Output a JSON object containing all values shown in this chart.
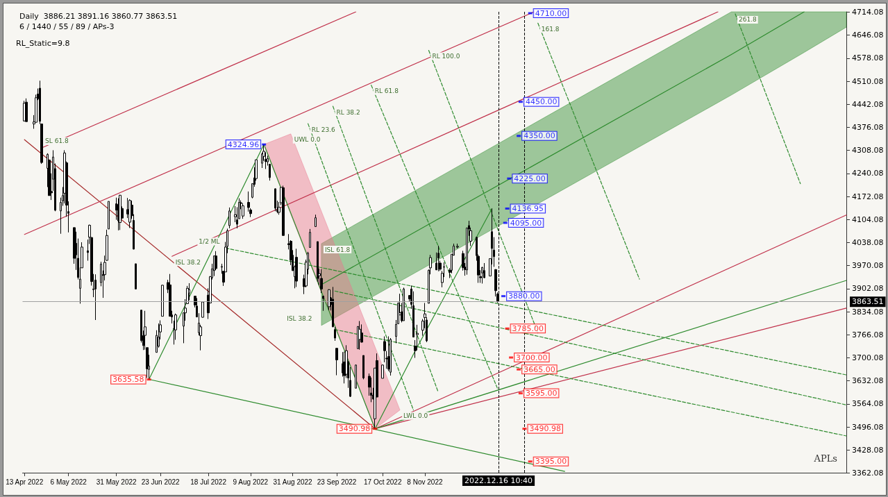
{
  "chart_data": {
    "type": "candlestick",
    "title": "Daily  3886.21 3891.16 3860.77 3863.51",
    "subtitle": "6 / 1440 / 55 / 89 / APs-3",
    "xlim": [
      "2022-04-12",
      "2023-06-16"
    ],
    "xticks": [
      {
        "value": "2022-04-13",
        "label": "13 Apr 2022"
      },
      {
        "value": "2022-05-06",
        "label": "6 May 2022"
      },
      {
        "value": "2022-05-31",
        "label": "31 May 2022"
      },
      {
        "value": "2022-06-23",
        "label": "23 Jun 2022"
      },
      {
        "value": "2022-07-18",
        "label": "18 Jul 2022"
      },
      {
        "value": "2022-08-09",
        "label": "9 Aug 2022"
      },
      {
        "value": "2022-08-31",
        "label": "31 Aug 2022"
      },
      {
        "value": "2022-09-23",
        "label": "23 Sep 2022"
      },
      {
        "value": "2022-10-17",
        "label": "17 Oct 2022"
      },
      {
        "value": "2022-11-08",
        "label": "8 Nov 2022"
      }
    ],
    "ylim": [
      3362.08,
      4714.08
    ],
    "yticks": [
      3362.08,
      3428.08,
      3496.08,
      3564.08,
      3632.08,
      3700.08,
      3766.08,
      3834.08,
      3902.08,
      3970.08,
      4038.08,
      4104.08,
      4172.08,
      4240.08,
      4308.08,
      4376.08,
      4442.08,
      4510.08,
      4578.08,
      4646.08,
      4714.08
    ],
    "series": [
      {
        "color": "#000000",
        "x": [
          "2022-04-13",
          "2022-04-14",
          "2022-04-18",
          "2022-04-19",
          "2022-04-20",
          "2022-04-21",
          "2022-04-22",
          "2022-04-25",
          "2022-04-26",
          "2022-04-27",
          "2022-04-28",
          "2022-04-29",
          "2022-05-02",
          "2022-05-03",
          "2022-05-04",
          "2022-05-05",
          "2022-05-06",
          "2022-05-09",
          "2022-05-10",
          "2022-05-11",
          "2022-05-12",
          "2022-05-13",
          "2022-05-16",
          "2022-05-17",
          "2022-05-18",
          "2022-05-19",
          "2022-05-20",
          "2022-05-23",
          "2022-05-24",
          "2022-05-25",
          "2022-05-26",
          "2022-05-27",
          "2022-05-31",
          "2022-06-01",
          "2022-06-02",
          "2022-06-03",
          "2022-06-06",
          "2022-06-07",
          "2022-06-08",
          "2022-06-09",
          "2022-06-10",
          "2022-06-13",
          "2022-06-14",
          "2022-06-15",
          "2022-06-16",
          "2022-06-17",
          "2022-06-21",
          "2022-06-22",
          "2022-06-23",
          "2022-06-24",
          "2022-06-27",
          "2022-06-28",
          "2022-06-29",
          "2022-06-30",
          "2022-07-01",
          "2022-07-05",
          "2022-07-06",
          "2022-07-07",
          "2022-07-08",
          "2022-07-11",
          "2022-07-12",
          "2022-07-13",
          "2022-07-14",
          "2022-07-15",
          "2022-07-18",
          "2022-07-19",
          "2022-07-20",
          "2022-07-21",
          "2022-07-22",
          "2022-07-25",
          "2022-07-26",
          "2022-07-27",
          "2022-07-28",
          "2022-07-29",
          "2022-08-01",
          "2022-08-02",
          "2022-08-03",
          "2022-08-04",
          "2022-08-05",
          "2022-08-08",
          "2022-08-09",
          "2022-08-10",
          "2022-08-11",
          "2022-08-12",
          "2022-08-15",
          "2022-08-16",
          "2022-08-17",
          "2022-08-18",
          "2022-08-19",
          "2022-08-22",
          "2022-08-23",
          "2022-08-24",
          "2022-08-25",
          "2022-08-26",
          "2022-08-29",
          "2022-08-30",
          "2022-08-31",
          "2022-09-01",
          "2022-09-02",
          "2022-09-06",
          "2022-09-07",
          "2022-09-08",
          "2022-09-09",
          "2022-09-12",
          "2022-09-13",
          "2022-09-14",
          "2022-09-15",
          "2022-09-16",
          "2022-09-19",
          "2022-09-20",
          "2022-09-21",
          "2022-09-22",
          "2022-09-23",
          "2022-09-26",
          "2022-09-27",
          "2022-09-28",
          "2022-09-29",
          "2022-09-30",
          "2022-10-03",
          "2022-10-04",
          "2022-10-05",
          "2022-10-06",
          "2022-10-07",
          "2022-10-10",
          "2022-10-11",
          "2022-10-12",
          "2022-10-13",
          "2022-10-14",
          "2022-10-17",
          "2022-10-18",
          "2022-10-19",
          "2022-10-20",
          "2022-10-21",
          "2022-10-24",
          "2022-10-25",
          "2022-10-26",
          "2022-10-27",
          "2022-10-28",
          "2022-10-31",
          "2022-11-01",
          "2022-11-02",
          "2022-11-03",
          "2022-11-04",
          "2022-11-07",
          "2022-11-08",
          "2022-11-09",
          "2022-11-10",
          "2022-11-11",
          "2022-11-14",
          "2022-11-15",
          "2022-11-16",
          "2022-11-17",
          "2022-11-18",
          "2022-11-21",
          "2022-11-22",
          "2022-11-23",
          "2022-11-25",
          "2022-11-28",
          "2022-11-29",
          "2022-11-30",
          "2022-12-01",
          "2022-12-02",
          "2022-12-05",
          "2022-12-06",
          "2022-12-07",
          "2022-12-08",
          "2022-12-09",
          "2022-12-12",
          "2022-12-13",
          "2022-12-14",
          "2022-12-15",
          "2022-12-16"
        ],
        "ohlc": [
          [
            4394,
            4453,
            4392,
            4446
          ],
          [
            4449,
            4460,
            4392,
            4392
          ],
          [
            4385,
            4411,
            4371,
            4391
          ],
          [
            4390,
            4471,
            4390,
            4462
          ],
          [
            4473,
            4489,
            4455,
            4459
          ],
          [
            4490,
            4512,
            4385,
            4393
          ],
          [
            4385,
            4385,
            4268,
            4272
          ],
          [
            4255,
            4299,
            4200,
            4296
          ],
          [
            4279,
            4279,
            4175,
            4175
          ],
          [
            4187,
            4240,
            4162,
            4183
          ],
          [
            4223,
            4308,
            4189,
            4288
          ],
          [
            4254,
            4269,
            4129,
            4132
          ],
          [
            4130,
            4169,
            4063,
            4155
          ],
          [
            4160,
            4200,
            4145,
            4175
          ],
          [
            4182,
            4308,
            4152,
            4300
          ],
          [
            4271,
            4275,
            4113,
            4147
          ],
          [
            4128,
            4158,
            4067,
            4123
          ],
          [
            4081,
            4082,
            3975,
            3991
          ],
          [
            4035,
            4069,
            3957,
            4001
          ],
          [
            3991,
            4049,
            3929,
            3935
          ],
          [
            3903,
            3964,
            3858,
            3930
          ],
          [
            3963,
            4038,
            3963,
            4024
          ],
          [
            4013,
            4046,
            3984,
            4008
          ],
          [
            4053,
            4090,
            4033,
            4088
          ],
          [
            4052,
            4053,
            3911,
            3923
          ],
          [
            3899,
            3945,
            3877,
            3901
          ],
          [
            3927,
            3944,
            3810,
            3901
          ],
          [
            3920,
            3981,
            3909,
            3974
          ],
          [
            3943,
            3955,
            3875,
            3941
          ],
          [
            3943,
            3999,
            3926,
            3979
          ],
          [
            3985,
            4075,
            3984,
            4058
          ],
          [
            4077,
            4158,
            4077,
            4158
          ],
          [
            4151,
            4169,
            4104,
            4132
          ],
          [
            4149,
            4167,
            4073,
            4101
          ],
          [
            4096,
            4177,
            4074,
            4176
          ],
          [
            4137,
            4143,
            4107,
            4109
          ],
          [
            4134,
            4168,
            4109,
            4121
          ],
          [
            4097,
            4164,
            4080,
            4161
          ],
          [
            4147,
            4160,
            4107,
            4116
          ],
          [
            4102,
            4120,
            4017,
            4018
          ],
          [
            3975,
            3975,
            3900,
            3901
          ],
          [
            3839,
            3839,
            3744,
            3750
          ],
          [
            3764,
            3779,
            3722,
            3735
          ],
          [
            3765,
            3837,
            3723,
            3790
          ],
          [
            3729,
            3729,
            3640,
            3667
          ],
          [
            3665,
            3708,
            3635.58,
            3675
          ],
          [
            3715,
            3780,
            3715,
            3765
          ],
          [
            3733,
            3800,
            3729,
            3760
          ],
          [
            3775,
            3809,
            3753,
            3796
          ],
          [
            3821,
            3913,
            3821,
            3912
          ],
          [
            3920,
            3928,
            3889,
            3900
          ],
          [
            3913,
            3945,
            3820,
            3821
          ],
          [
            3825,
            3837,
            3800,
            3819
          ],
          [
            3785,
            3808,
            3738,
            3785
          ],
          [
            3781,
            3829,
            3752,
            3825
          ],
          [
            3792,
            3832,
            3742,
            3831
          ],
          [
            3831,
            3871,
            3808,
            3845
          ],
          [
            3858,
            3910,
            3858,
            3903
          ],
          [
            3889,
            3918,
            3868,
            3899
          ],
          [
            3880,
            3880,
            3847,
            3854
          ],
          [
            3851,
            3874,
            3818,
            3819
          ],
          [
            3773,
            3830,
            3765,
            3801
          ],
          [
            3764,
            3796,
            3721,
            3790
          ],
          [
            3818,
            3863,
            3817,
            3863
          ],
          [
            3883,
            3903,
            3813,
            3831
          ],
          [
            3860,
            3939,
            3860,
            3937
          ],
          [
            3935,
            3975,
            3929,
            3960
          ],
          [
            3955,
            3999,
            3939,
            3998
          ],
          [
            3998,
            4012,
            3956,
            3961
          ],
          [
            3965,
            3975,
            3946,
            3967
          ],
          [
            3953,
            3953,
            3910,
            3921
          ],
          [
            3951,
            4039,
            3951,
            4024
          ],
          [
            4026,
            4078,
            4006,
            4072
          ],
          [
            4087,
            4140,
            4079,
            4130
          ],
          [
            4113,
            4144,
            4097,
            4119
          ],
          [
            4104,
            4141,
            4079,
            4091
          ],
          [
            4107,
            4167,
            4107,
            4155
          ],
          [
            4154,
            4161,
            4135,
            4152
          ],
          [
            4115,
            4152,
            4107,
            4145
          ],
          [
            4155,
            4187,
            4128,
            4140
          ],
          [
            4133,
            4138,
            4112,
            4122
          ],
          [
            4170,
            4211,
            4167,
            4210
          ],
          [
            4227,
            4258,
            4201,
            4208
          ],
          [
            4225,
            4280,
            4219,
            4280
          ],
          [
            4270,
            4301,
            4256,
            4297
          ],
          [
            4290,
            4324.96,
            4277,
            4305
          ],
          [
            4281,
            4302,
            4253,
            4275
          ],
          [
            4274,
            4292,
            4263,
            4284
          ],
          [
            4267,
            4267,
            4219,
            4228
          ],
          [
            4195,
            4196,
            4129,
            4138
          ],
          [
            4134,
            4160,
            4123,
            4128
          ],
          [
            4126,
            4156,
            4119,
            4141
          ],
          [
            4154,
            4200,
            4147,
            4199
          ],
          [
            4198,
            4204,
            4057,
            4058
          ],
          [
            4034,
            4062,
            4017,
            4031
          ],
          [
            4041,
            4044,
            3971,
            3986
          ],
          [
            4000,
            4015,
            3954,
            3955
          ],
          [
            3937,
            3970,
            3903,
            3966
          ],
          [
            3994,
            4019,
            3907,
            3924
          ],
          [
            3931,
            3943,
            3886,
            3908
          ],
          [
            3910,
            3987,
            3906,
            3980
          ],
          [
            3959,
            4010,
            3944,
            4006
          ],
          [
            4023,
            4077,
            4022,
            4067
          ],
          [
            4084,
            4119,
            4083,
            4110
          ],
          [
            4040,
            4040,
            3922,
            3932
          ],
          [
            3940,
            3961,
            3912,
            3946
          ],
          [
            3932,
            3959,
            3889,
            3901
          ],
          [
            3880,
            3880,
            3837,
            3873
          ],
          [
            3849,
            3900,
            3839,
            3899
          ],
          [
            3875,
            3877,
            3838,
            3855
          ],
          [
            3871,
            3907,
            3789,
            3790
          ],
          [
            3782,
            3790,
            3749,
            3757
          ],
          [
            3727,
            3727,
            3648,
            3693
          ],
          [
            3682,
            3716,
            3644,
            3655
          ],
          [
            3687,
            3717,
            3624,
            3647
          ],
          [
            3651,
            3736,
            3640,
            3720
          ],
          [
            3688,
            3688,
            3611,
            3640
          ],
          [
            3633,
            3672,
            3584,
            3586
          ],
          [
            3610,
            3679,
            3610,
            3678
          ],
          [
            3726,
            3791,
            3726,
            3791
          ],
          [
            3753,
            3807,
            3723,
            3783
          ],
          [
            3772,
            3797,
            3744,
            3745
          ],
          [
            3706,
            3706,
            3636,
            3640
          ],
          [
            3645,
            3653,
            3588,
            3613
          ],
          [
            3596,
            3641,
            3569,
            3589
          ],
          [
            3590,
            3611,
            3578,
            3578
          ],
          [
            3520,
            3669,
            3490.98,
            3669
          ],
          [
            3691,
            3712,
            3584,
            3584
          ],
          [
            3639,
            3679,
            3639,
            3678
          ],
          [
            3747,
            3762,
            3686,
            3720
          ],
          [
            3698,
            3719,
            3667,
            3696
          ],
          [
            3703,
            3762,
            3660,
            3666
          ],
          [
            3657,
            3757,
            3647,
            3753
          ],
          [
            3762,
            3810,
            3742,
            3797
          ],
          [
            3799,
            3862,
            3799,
            3859
          ],
          [
            3825,
            3887,
            3825,
            3831
          ],
          [
            3834,
            3860,
            3803,
            3808
          ],
          [
            3808,
            3905,
            3808,
            3901
          ],
          [
            3882,
            3882,
            3863,
            3872
          ],
          [
            3901,
            3911,
            3843,
            3856
          ],
          [
            3852,
            3894,
            3759,
            3760
          ],
          [
            3733,
            3751,
            3699,
            3720
          ],
          [
            3767,
            3796,
            3721,
            3771
          ],
          [
            3780,
            3813,
            3764,
            3807
          ],
          [
            3817,
            3860,
            3786,
            3828
          ],
          [
            3810,
            3818,
            3745,
            3749
          ],
          [
            3859,
            3958,
            3859,
            3956
          ],
          [
            3963,
            4001,
            3944,
            3993
          ],
          [
            3977,
            4008,
            3957,
            3957
          ],
          [
            4006,
            4028,
            3953,
            3992
          ],
          [
            3977,
            3984,
            3954,
            3959
          ],
          [
            3920,
            3954,
            3906,
            3947
          ],
          [
            3966,
            3979,
            3936,
            3965
          ],
          [
            3956,
            3962,
            3933,
            3950
          ],
          [
            3956,
            4003,
            3947,
            4003
          ],
          [
            4000,
            4034,
            3999,
            4027
          ],
          [
            4024,
            4034,
            4020,
            4026
          ],
          [
            4005,
            4013,
            3955,
            3964
          ],
          [
            3965,
            3977,
            3940,
            3958
          ],
          [
            3957,
            4080,
            3943,
            4080
          ],
          [
            4087,
            4101,
            4057,
            4077
          ],
          [
            4041,
            4081,
            4027,
            4072
          ],
          [
            4053,
            4053,
            3984,
            3999
          ],
          [
            3997,
            4002,
            3919,
            3942
          ],
          [
            3937,
            3956,
            3919,
            3934
          ],
          [
            3948,
            3966,
            3917,
            3964
          ],
          [
            3955,
            3977,
            3933,
            3934
          ],
          [
            3939,
            3990,
            3939,
            3990
          ],
          [
            4069,
            4136.95,
            3973,
            4020
          ],
          [
            4015,
            4053,
            3966,
            3996
          ],
          [
            3958,
            3959,
            3879,
            3896
          ],
          [
            3886.21,
            3891.16,
            3860.77,
            3863.51
          ]
        ]
      },
      {
        "type": "line",
        "color": "#2e8b2e",
        "x": [
          "2022-09-15",
          "2023-04-17",
          "2023-05-25",
          "2023-06-16"
        ],
        "values": [
          3914,
          4589,
          4714,
          null
        ],
        "lower": [
          3794,
          4470,
          4595,
          4669
        ],
        "upper": [
          4034,
          4714,
          4714,
          4714
        ]
      },
      {
        "type": "line",
        "color": "#e8788f",
        "x": [
          "2022-08-16",
          "2022-08-30",
          "2022-10-13",
          "2022-10-26"
        ],
        "values": [
          null,
          null,
          null,
          null
        ],
        "lower": [
          4325,
          4120,
          3491,
          3546
        ],
        "upper": [
          4325,
          4356,
          3731,
          3546
        ]
      },
      {
        "type": "line",
        "color": "#a52a2a",
        "x": [
          "2022-04-13",
          "2022-10-13"
        ],
        "values": [
          4339,
          3491
        ]
      },
      {
        "type": "line",
        "color": "#c0304a",
        "x": [
          "2022-04-22",
          "2022-10-03"
        ],
        "values": [
          4315,
          4714
        ]
      },
      {
        "type": "line",
        "color": "#c0304a",
        "x": [
          "2022-04-13",
          "2023-01-04"
        ],
        "values": [
          4061,
          4714
        ]
      },
      {
        "type": "line",
        "color": "#c0304a",
        "x": [
          "2022-06-29",
          "2023-04-10"
        ],
        "values": [
          3997,
          4714
        ]
      },
      {
        "type": "line",
        "color": "#c0304a",
        "x": [
          "2022-10-13",
          "2023-06-16"
        ],
        "values": [
          3491,
          4118
        ]
      },
      {
        "type": "line",
        "color": "#c0304a",
        "x": [
          "2022-10-13",
          "2023-06-16"
        ],
        "values": [
          3491,
          3845
        ]
      },
      {
        "type": "line",
        "color": "#2e8b2e",
        "x": [
          "2022-06-17",
          "2022-08-16",
          "2022-10-13",
          "2022-11-03",
          "2022-12-13"
        ],
        "values": [
          3636,
          4325,
          3491,
          3720,
          4137
        ]
      },
      {
        "type": "line",
        "color": "#2e8b2e",
        "x": [
          "2022-06-17",
          "2023-01-20"
        ],
        "values": [
          3636,
          3366
        ]
      },
      {
        "type": "line",
        "color": "#2e8b2e",
        "x": [
          "2022-10-13",
          "2023-06-16"
        ],
        "values": [
          3491,
          3926
        ]
      },
      {
        "type": "line",
        "color": "#2e8b2e",
        "line_style": "dashed",
        "x": [
          "2022-07-27",
          "2023-06-16"
        ],
        "values": [
          4021,
          3649
        ]
      },
      {
        "type": "line",
        "color": "#2e8b2e",
        "line_style": "dashed",
        "x": [
          "2022-09-22",
          "2023-06-16"
        ],
        "values": [
          3895,
          3561
        ]
      },
      {
        "type": "line",
        "color": "#2e8b2e",
        "line_style": "dashed",
        "x": [
          "2022-09-22",
          "2023-06-16"
        ],
        "values": [
          3782,
          3470
        ]
      },
      {
        "type": "line",
        "color": "#2e8b2e",
        "line_style": "dashed",
        "x": [
          "2022-09-08",
          "2022-11-02"
        ],
        "values": [
          4386,
          3546
        ]
      },
      {
        "type": "line",
        "color": "#2e8b2e",
        "line_style": "dashed",
        "x": [
          "2022-09-21",
          "2022-11-15"
        ],
        "values": [
          4437,
          3598
        ]
      },
      {
        "type": "line",
        "color": "#2e8b2e",
        "line_style": "dashed",
        "x": [
          "2022-10-11",
          "2022-12-16"
        ],
        "values": [
          4499,
          3608
        ]
      },
      {
        "type": "line",
        "color": "#2e8b2e",
        "line_style": "dashed",
        "x": [
          "2022-11-10",
          "2023-01-06"
        ],
        "values": [
          4601,
          3772
        ]
      },
      {
        "type": "line",
        "color": "#2e8b2e",
        "line_style": "dashed",
        "x": [
          "2023-01-06",
          "2023-02-28"
        ],
        "values": [
          4681,
          3930
        ]
      },
      {
        "type": "line",
        "color": "#2e8b2e",
        "line_style": "dashed",
        "x": [
          "2023-04-19",
          "2023-05-23"
        ],
        "values": [
          4708,
          4210
        ]
      },
      {
        "type": "scatter",
        "marker": "square",
        "x": [
          "2023-01-02",
          "2022-12-28",
          "2022-12-27",
          "2022-12-22",
          "2022-12-21",
          "2022-12-20",
          "2022-12-19",
          "2022-12-21",
          "2022-12-23",
          "2022-12-27",
          "2022-12-28",
          "2022-12-30",
          "2023-01-02",
          "2022-08-16",
          "2022-06-17",
          "2022-10-13"
        ],
        "values": [
          4710,
          4450,
          4350,
          4225,
          4136.95,
          4095,
          3880,
          3785,
          3700,
          3665,
          3595,
          3490.98,
          3395,
          4324.96,
          3635.58,
          3490.98
        ],
        "value_labels": [
          "4710.00",
          "4450.00",
          "4350.00",
          "4225.00",
          "4136.95",
          "4095.00",
          "3880.00",
          "3785.00",
          "3700.00",
          "3665.00",
          "3595.00",
          "3490.98",
          "3395.00",
          "4324.96",
          "3635.58",
          "3490.98"
        ],
        "colors": [
          "#0000ff",
          "#0000ff",
          "#0000ff",
          "#0000ff",
          "#0000ff",
          "#0000ff",
          "#0000ff",
          "#ff0000",
          "#ff0000",
          "#ff0000",
          "#ff0000",
          "#ff0000",
          "#ff0000",
          "#0000ff",
          "#ff0000",
          "#ff0000"
        ]
      }
    ],
    "ref_lines": [
      {
        "axis": "x",
        "value": "2022-12-16T10:40",
        "color": "#000000",
        "line_style": "dashed"
      },
      {
        "axis": "x",
        "value": "2022-12-30",
        "color": "#000000",
        "line_style": "dashed"
      },
      {
        "axis": "y",
        "value": 3863.51,
        "label": "3863.51",
        "color": "#a0a0a0"
      }
    ],
    "annotations": [
      "RL_Static=9.8",
      "APLs",
      {
        "text": "2022.12.16 10:40",
        "x": "2022-12-16T10:40",
        "y": 3362.08
      },
      {
        "text": "SL 61.8",
        "x": "2022-04-22",
        "y": 4315
      },
      {
        "text": "ISL 38.2",
        "x": "2022-06-29",
        "y": 3997
      },
      {
        "text": "UWL 0.0",
        "x": "2022-08-30",
        "y": 4356
      },
      {
        "text": "RL 23.6",
        "x": "2022-09-08",
        "y": 4386
      },
      {
        "text": "RL 38.2",
        "x": "2022-09-21",
        "y": 4437
      },
      {
        "text": "RL 61.8",
        "x": "2022-10-11",
        "y": 4499
      },
      {
        "text": "RL 100.0",
        "x": "2022-11-10",
        "y": 4601
      },
      {
        "text": "161.8",
        "x": "2023-01-06",
        "y": 4681
      },
      {
        "text": "261.8",
        "x": "2023-04-19",
        "y": 4708
      },
      {
        "text": "1/2 ML",
        "x": "2022-07-27",
        "y": 4021
      },
      {
        "text": "ISL 61.8",
        "x": "2022-09-15",
        "y": 4034
      },
      {
        "text": "ISL 38.2",
        "x": "2022-09-15",
        "y": 3794
      },
      {
        "text": "LWL 0.0",
        "x": "2022-10-26",
        "y": 3546
      }
    ]
  }
}
